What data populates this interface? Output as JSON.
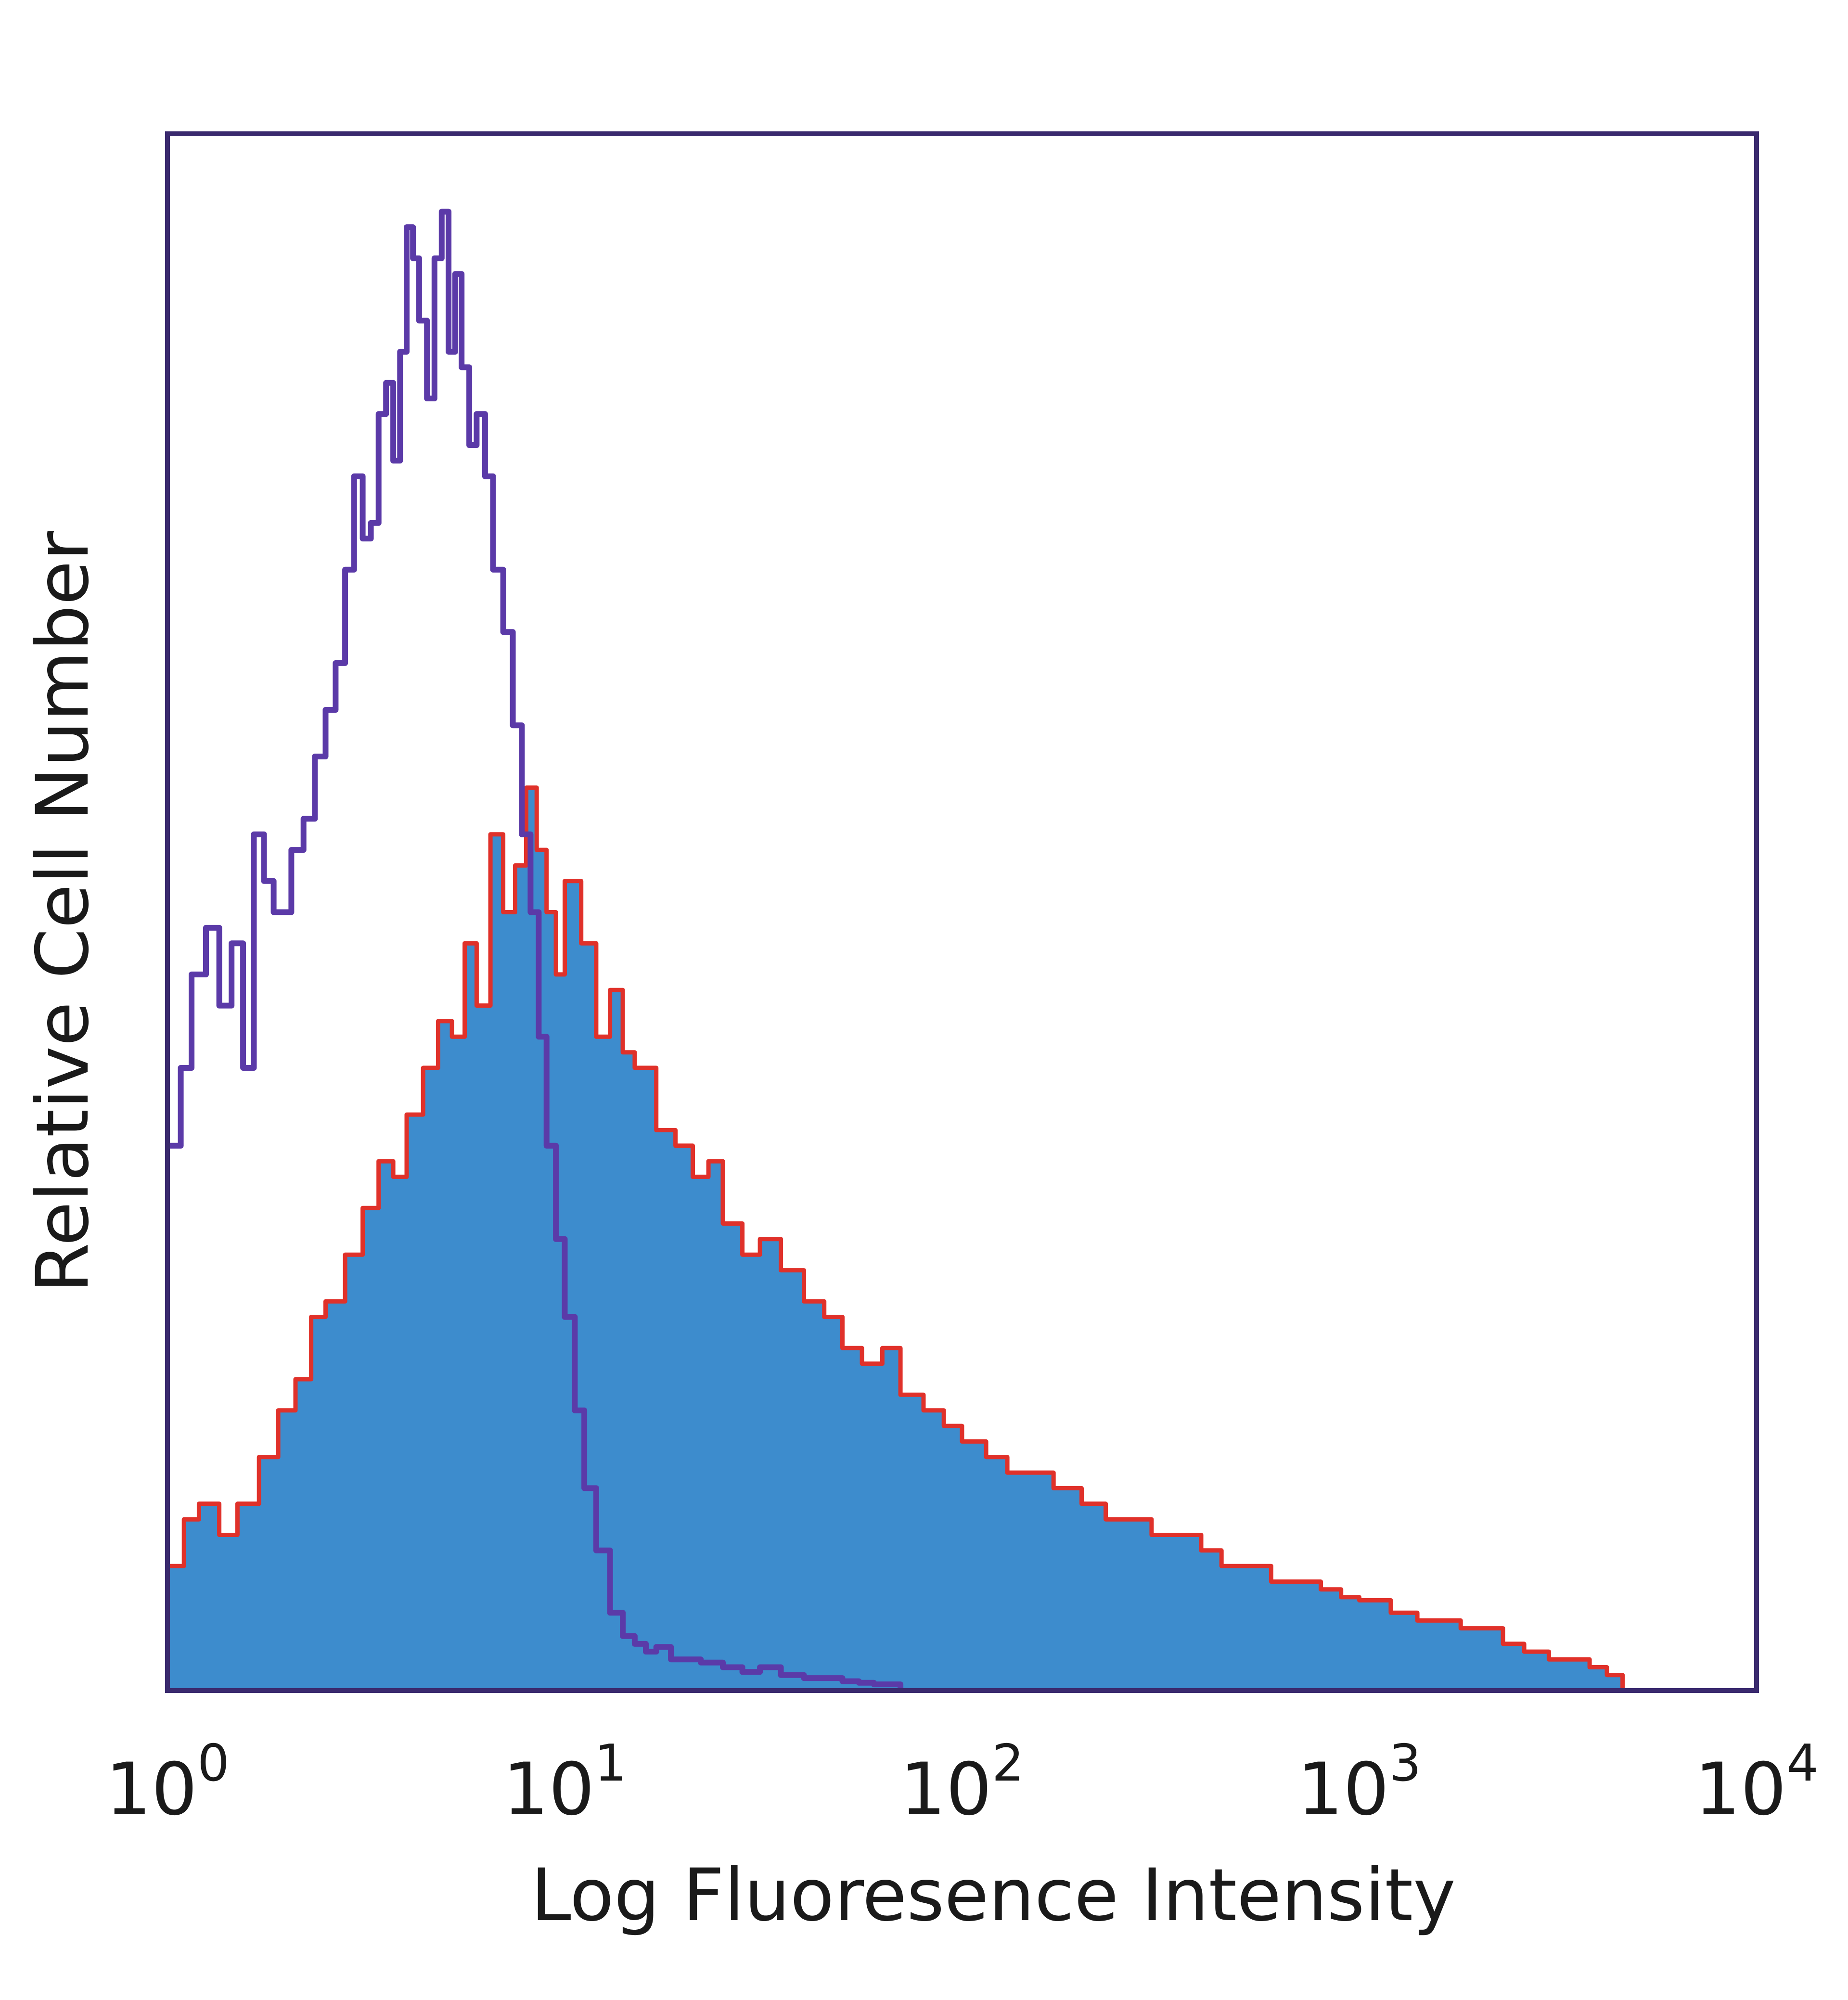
{
  "chart_data": {
    "type": "area",
    "xlabel": "Log Fluoresence Intensity",
    "ylabel": "Relative Cell Number",
    "x_scale": "log",
    "xlim": [
      1,
      10000
    ],
    "ylim": [
      0,
      1
    ],
    "grid": false,
    "x_ticks": [
      {
        "value": 1,
        "base": "10",
        "exp": "0"
      },
      {
        "value": 10,
        "base": "10",
        "exp": "1"
      },
      {
        "value": 100,
        "base": "10",
        "exp": "2"
      },
      {
        "value": 1000,
        "base": "10",
        "exp": "3"
      },
      {
        "value": 10000,
        "base": "10",
        "exp": "4"
      }
    ],
    "series": [
      {
        "style": "filled",
        "fill": "#3d8ccd",
        "stroke": "#e0312a",
        "x": [
          1,
          1.1,
          1.2,
          1.35,
          1.5,
          1.7,
          1.9,
          2.1,
          2.3,
          2.5,
          2.8,
          3.1,
          3.4,
          3.7,
          4.0,
          4.4,
          4.8,
          5.2,
          5.6,
          6.0,
          6.5,
          7.0,
          7.5,
          8.0,
          8.5,
          9.0,
          9.5,
          10,
          11,
          12,
          13,
          14,
          15,
          17,
          19,
          21,
          23,
          25,
          28,
          31,
          35,
          40,
          45,
          50,
          56,
          63,
          70,
          80,
          90,
          100,
          115,
          130,
          150,
          170,
          200,
          230,
          260,
          300,
          350,
          400,
          450,
          500,
          600,
          700,
          800,
          900,
          1000,
          1200,
          1400,
          1600,
          1800,
          2000,
          2300,
          2600,
          3000,
          3400,
          3800,
          4200,
          4600
        ],
        "values": [
          0.08,
          0.11,
          0.12,
          0.1,
          0.12,
          0.15,
          0.18,
          0.2,
          0.24,
          0.25,
          0.28,
          0.31,
          0.34,
          0.33,
          0.37,
          0.4,
          0.43,
          0.42,
          0.48,
          0.44,
          0.55,
          0.5,
          0.53,
          0.58,
          0.54,
          0.5,
          0.46,
          0.52,
          0.48,
          0.42,
          0.45,
          0.41,
          0.4,
          0.36,
          0.35,
          0.33,
          0.34,
          0.3,
          0.28,
          0.29,
          0.27,
          0.25,
          0.24,
          0.22,
          0.21,
          0.22,
          0.19,
          0.18,
          0.17,
          0.16,
          0.15,
          0.14,
          0.14,
          0.13,
          0.12,
          0.11,
          0.11,
          0.1,
          0.1,
          0.09,
          0.08,
          0.08,
          0.07,
          0.07,
          0.065,
          0.06,
          0.058,
          0.05,
          0.045,
          0.045,
          0.04,
          0.04,
          0.03,
          0.025,
          0.02,
          0.02,
          0.015,
          0.01,
          0.0
        ]
      },
      {
        "style": "line",
        "stroke": "#5b3aa8",
        "x": [
          1,
          1.08,
          1.15,
          1.25,
          1.35,
          1.45,
          1.55,
          1.65,
          1.75,
          1.85,
          1.95,
          2.05,
          2.2,
          2.35,
          2.5,
          2.65,
          2.8,
          2.95,
          3.1,
          3.25,
          3.4,
          3.55,
          3.7,
          3.85,
          4.0,
          4.15,
          4.3,
          4.5,
          4.7,
          4.9,
          5.1,
          5.3,
          5.5,
          5.75,
          6.0,
          6.3,
          6.6,
          7.0,
          7.4,
          7.8,
          8.2,
          8.6,
          9.0,
          9.5,
          10,
          10.6,
          11.2,
          12,
          13,
          14,
          15,
          16,
          17,
          18.5,
          20,
          22,
          25,
          28,
          31,
          35,
          40,
          45,
          50,
          55,
          60,
          65,
          70
        ],
        "values": [
          0.35,
          0.4,
          0.46,
          0.49,
          0.44,
          0.48,
          0.4,
          0.55,
          0.52,
          0.5,
          0.5,
          0.54,
          0.56,
          0.6,
          0.63,
          0.66,
          0.72,
          0.78,
          0.74,
          0.75,
          0.82,
          0.84,
          0.79,
          0.86,
          0.94,
          0.92,
          0.88,
          0.83,
          0.92,
          0.95,
          0.86,
          0.91,
          0.85,
          0.8,
          0.82,
          0.78,
          0.72,
          0.68,
          0.62,
          0.55,
          0.5,
          0.42,
          0.35,
          0.29,
          0.24,
          0.18,
          0.13,
          0.09,
          0.05,
          0.035,
          0.03,
          0.025,
          0.028,
          0.02,
          0.02,
          0.018,
          0.015,
          0.012,
          0.015,
          0.01,
          0.008,
          0.008,
          0.006,
          0.005,
          0.004,
          0.004,
          0.0
        ]
      }
    ]
  }
}
